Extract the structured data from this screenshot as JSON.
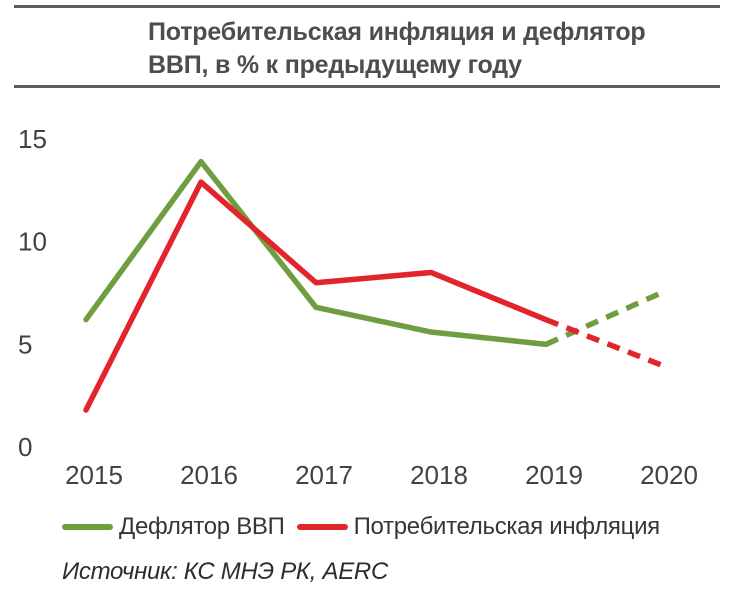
{
  "chart_data": {
    "type": "line",
    "title": "Потребительская инфляция и дефлятор ВВП, в % к предыдущему году",
    "categories": [
      "2015",
      "2016",
      "2017",
      "2018",
      "2019",
      "2020"
    ],
    "series": [
      {
        "name": "Дефлятор ВВП",
        "color": "#6f9e41",
        "values": [
          6.2,
          13.9,
          6.8,
          5.6,
          5.0,
          7.5
        ],
        "forecast_from_index": 4
      },
      {
        "name": "Потребительская инфляция",
        "color": "#e2252b",
        "values": [
          1.8,
          12.9,
          8.0,
          8.5,
          6.2,
          4.0
        ],
        "forecast_from_index": 4
      }
    ],
    "y_ticks": [
      0,
      5,
      10,
      15
    ],
    "ylim": [
      0,
      15
    ],
    "grid": false,
    "axis_lines": false,
    "legend_position": "bottom",
    "forecast_style": "dashed segment from 2019 to 2020"
  },
  "source": {
    "text": "Источник: КС МНЭ РК, AERC"
  },
  "colors": {
    "rule": "#5a5b5d",
    "title_text": "#4b4d4f",
    "tick_text": "#3f4345"
  }
}
